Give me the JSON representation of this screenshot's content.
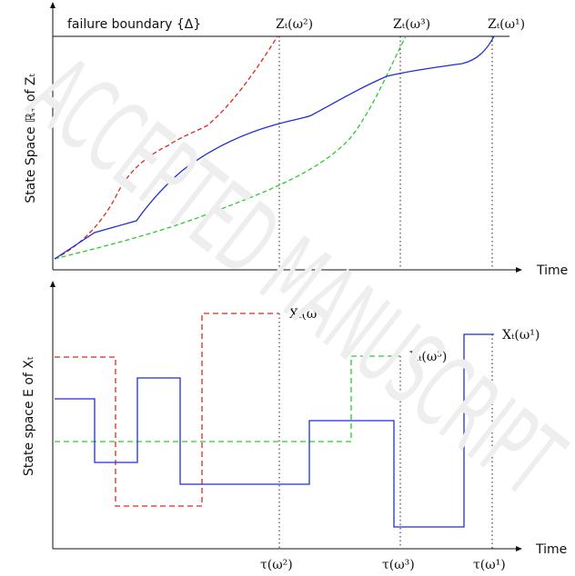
{
  "watermark": "ACCEPTED MANUSCRIPT",
  "colors": {
    "axis": "#111111",
    "omega1": "#1f2fd1",
    "omega2": "#e0281f",
    "omega3": "#2bcb2b",
    "dotted": "#222222"
  },
  "top_panel": {
    "ylabel": "State Space ℝ₊ of Zₜ",
    "xlabel": "Time",
    "boundary_label": "failure boundary {Δ}",
    "curve_labels": {
      "omega2": "Zₜ(ω²)",
      "omega3": "Zₜ(ω³)",
      "omega1": "Zₜ(ω¹)"
    }
  },
  "bottom_panel": {
    "ylabel": "State space E of Xₜ",
    "xlabel": "Time",
    "series_labels": {
      "omega2": "Xₜ(ω²)",
      "omega3": "Xₜ(ω³)",
      "omega1": "Xₜ(ω¹)"
    },
    "tau_labels": {
      "omega2": "τ(ω²)",
      "omega3": "τ(ω³)",
      "omega1": "τ(ω¹)"
    }
  }
}
